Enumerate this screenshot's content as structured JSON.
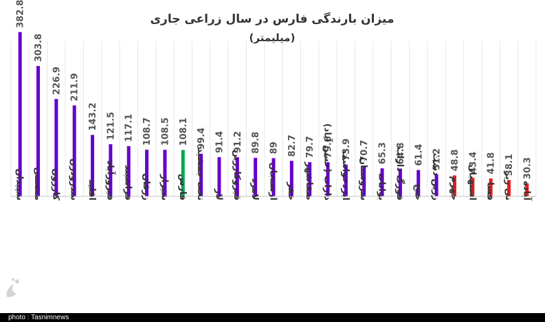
{
  "chart_data": {
    "type": "bar",
    "title": "میزان بارندگی فارس در سال زراعی جاری",
    "subtitle": "(میلیمتر)",
    "categories": [
      "سپیدان",
      "ممسنی",
      "کازرون",
      "سدرودزن",
      "اقلید",
      "فیروزآباد",
      "فراشبند",
      "زرقان",
      "شیراز",
      "فارس",
      "تخت جمشید",
      "لار",
      "قیروکارزین",
      "لامرد",
      "ارسنجان",
      "خفر",
      "صفاشهر",
      "داراب (حسن آباد)",
      "ایزدخواست",
      "سروستان",
      "بوانات",
      "فورگ داراب",
      "خنج",
      "زرین دشت",
      "جهرم",
      "استهبان",
      "فسا",
      "نی ریز",
      "آباده"
    ],
    "values": [
      382.8,
      303.8,
      226.9,
      211.9,
      143.2,
      121.5,
      117.1,
      108.7,
      108.5,
      108.1,
      99.4,
      91.4,
      91.2,
      89.8,
      89,
      82.7,
      79.7,
      79.6,
      73.9,
      70.7,
      65.3,
      64.8,
      61.4,
      51.2,
      48.8,
      43.4,
      41.8,
      38.1,
      30.3
    ],
    "value_labels": [
      "382.8",
      "303.8",
      "226.9",
      "211.9",
      "143.2",
      "121.5",
      "117.1",
      "108.7",
      "108.5",
      "108.1",
      "99.4",
      "91.4",
      "91.2",
      "89.8",
      "89",
      "82.7",
      "79.7",
      "79.6",
      "73.9",
      "70.7",
      "65.3",
      "64.8",
      "61.4",
      "51.2",
      "48.8",
      "43.4",
      "41.8",
      "38.1",
      "30.3"
    ],
    "bar_colors": [
      "#6600cc",
      "#6600cc",
      "#6600cc",
      "#6600cc",
      "#6600cc",
      "#6600cc",
      "#6600cc",
      "#6600cc",
      "#6600cc",
      "#00a651",
      "#6600cc",
      "#6600cc",
      "#6600cc",
      "#6600cc",
      "#6600cc",
      "#6600cc",
      "#6600cc",
      "#6600cc",
      "#6600cc",
      "#6600cc",
      "#6600cc",
      "#6600cc",
      "#6600cc",
      "#6600cc",
      "#e31e1e",
      "#e31e1e",
      "#e31e1e",
      "#e31e1e",
      "#e31e1e"
    ],
    "ylim": [
      0,
      400
    ],
    "grid": true,
    "legend": "none"
  },
  "logo": {
    "name": "tasnim-logo-icon",
    "color": "#d4d4d4"
  },
  "footer": {
    "credit": "photo : Tasnimnews"
  }
}
